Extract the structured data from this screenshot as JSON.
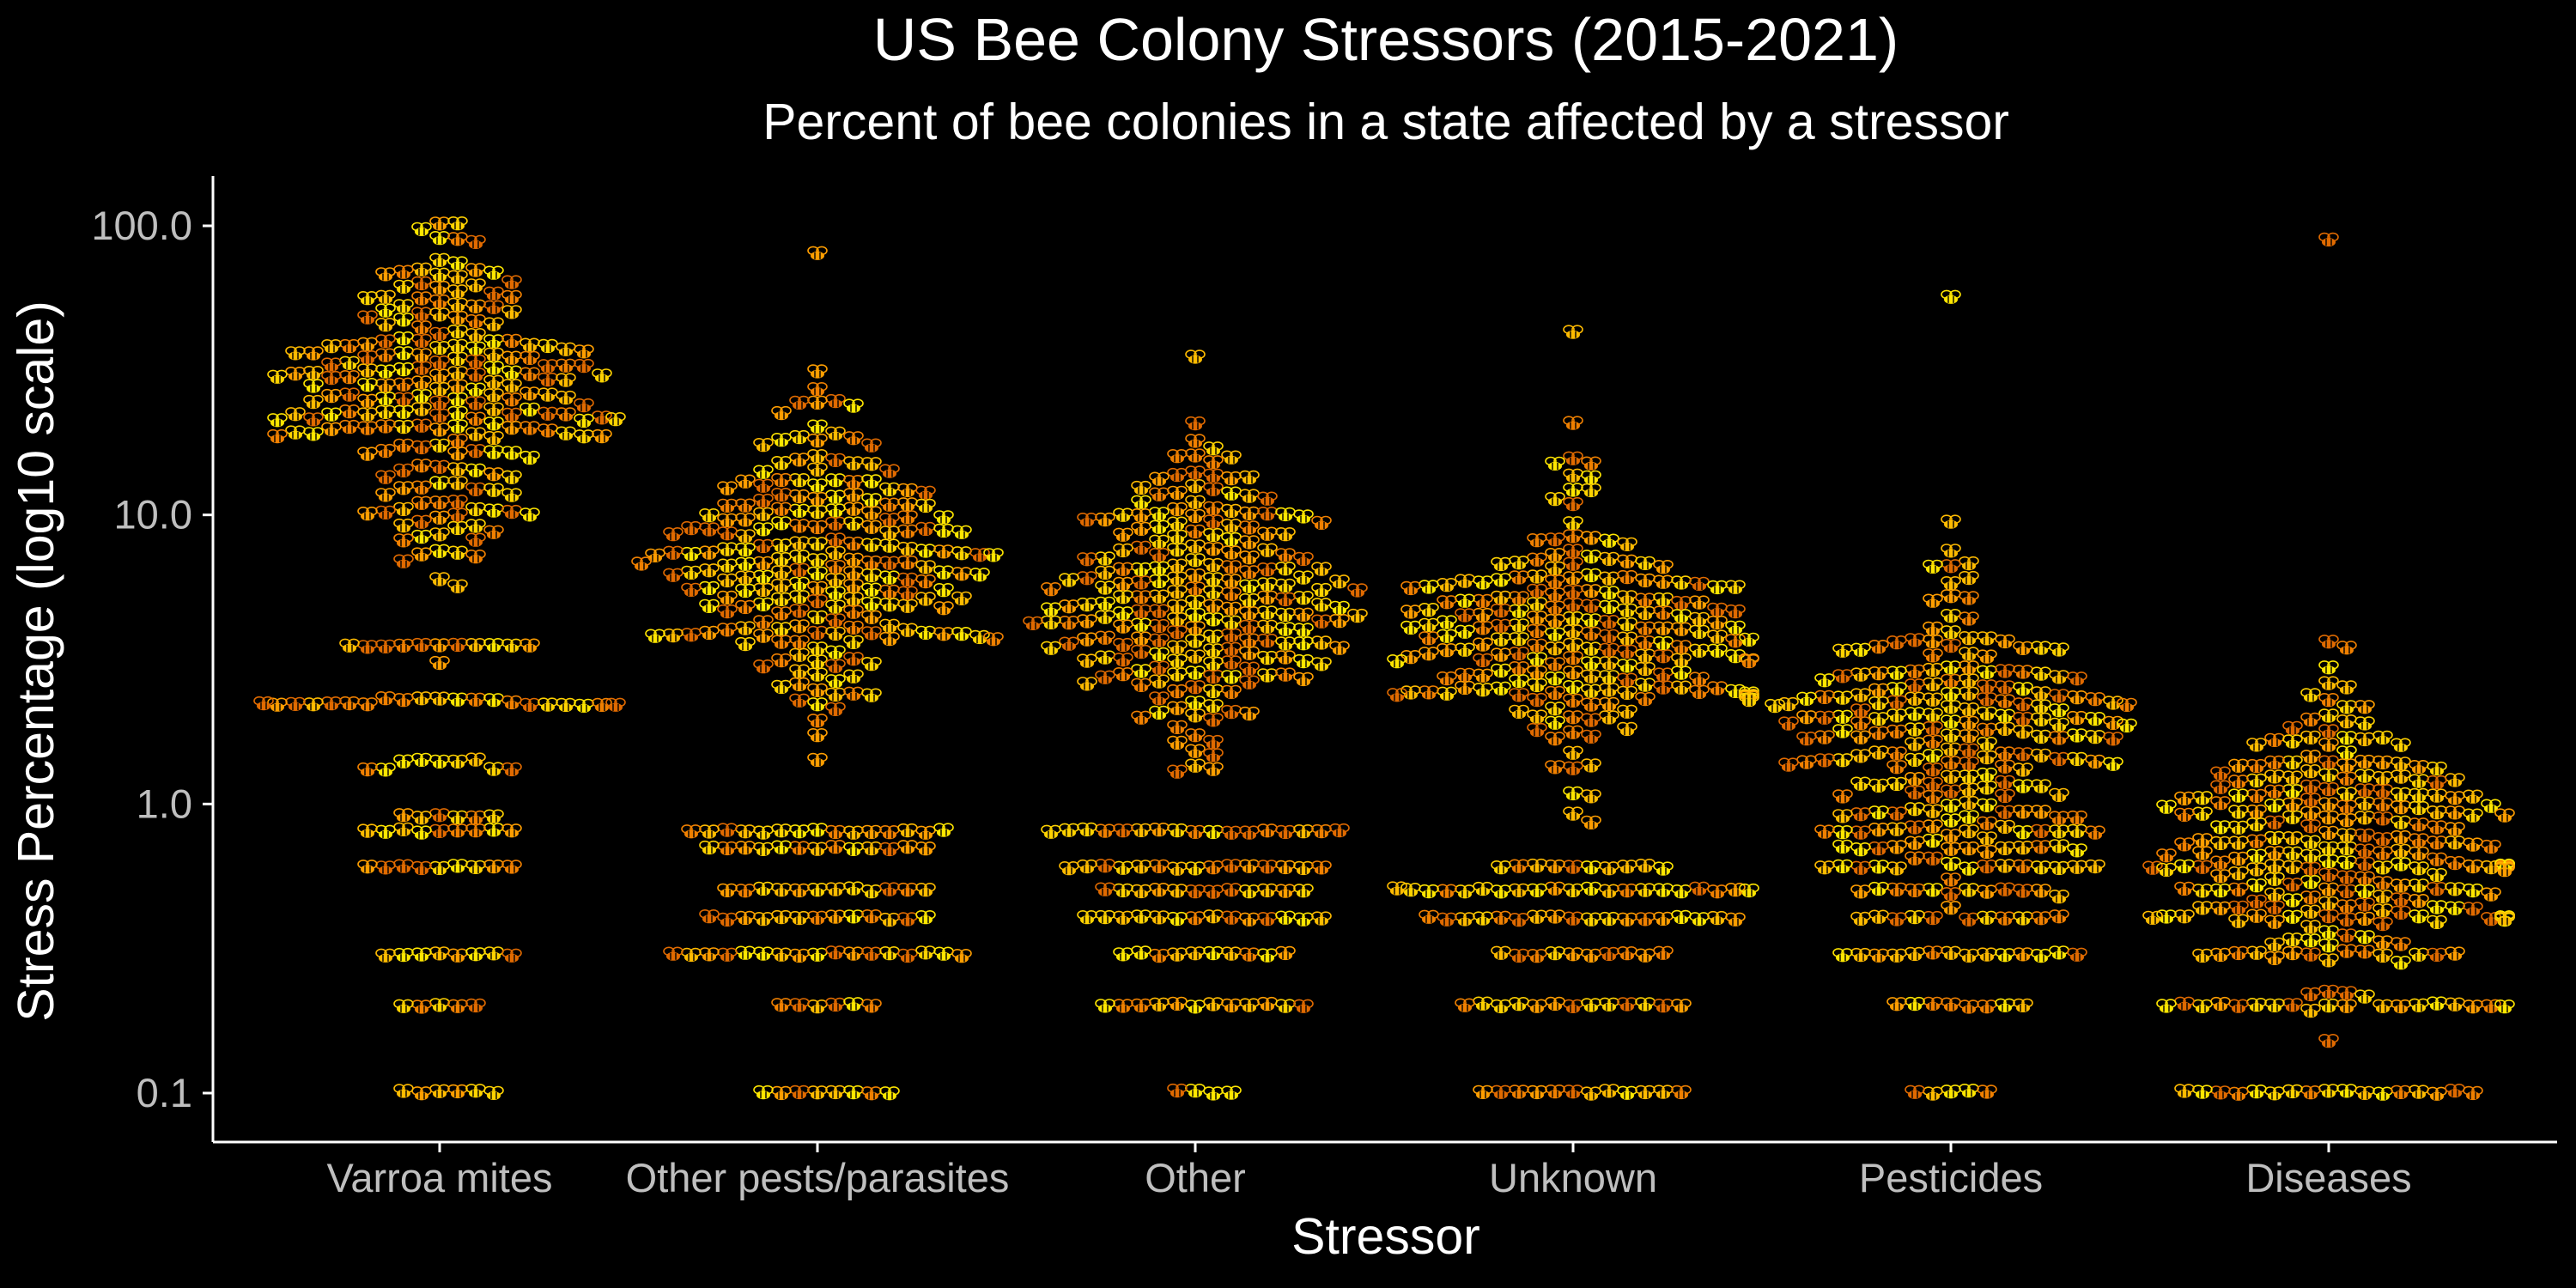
{
  "colors": {
    "background": "#000000",
    "text": "#ffffff",
    "tick_text": "#bfbfbf",
    "axis": "#ffffff",
    "point_palette": [
      "#ffd200",
      "#ffbb00",
      "#ff9e00",
      "#f08000",
      "#e06a00",
      "#ffe600"
    ]
  },
  "marker_icon": "bee-icon",
  "chart_data": {
    "type": "beeswarm",
    "title": "US Bee Colony Stressors (2015-2021)",
    "subtitle": "Percent of bee colonies in a state affected by a stressor",
    "xlabel": "Stressor",
    "ylabel": "Stress Percentage (log10 scale)",
    "y_scale": "log10",
    "ylim": [
      0.1,
      100
    ],
    "y_ticks": [
      0.1,
      1.0,
      10.0,
      100.0
    ],
    "y_tick_labels": [
      "0.1",
      "1.0",
      "10.0",
      "100.0"
    ],
    "grid": false,
    "legend": "none",
    "categories": [
      "Varroa mites",
      "Other pests/parasites",
      "Other",
      "Unknown",
      "Pesticides",
      "Diseases"
    ],
    "series": [
      {
        "category": "Varroa mites",
        "approx_count": 300,
        "approx_range": [
          0.1,
          100
        ],
        "median": 24,
        "dense_low_values": [
          0.1,
          0.2,
          0.3,
          0.6,
          0.8,
          0.9,
          1.3,
          1.4,
          2.2,
          2.3,
          3.5
        ]
      },
      {
        "category": "Other pests/parasites",
        "approx_count": 300,
        "approx_range": [
          0.1,
          80
        ],
        "median": 7,
        "dense_low_values": [
          0.1,
          0.2,
          0.3,
          0.4,
          0.5,
          0.7,
          0.8
        ]
      },
      {
        "category": "Other",
        "approx_count": 300,
        "approx_range": [
          0.1,
          35
        ],
        "median": 5,
        "dense_low_values": [
          0.1,
          0.2,
          0.3,
          0.4,
          0.5,
          0.6,
          0.8
        ]
      },
      {
        "category": "Unknown",
        "approx_count": 300,
        "approx_range": [
          0.1,
          43
        ],
        "median": 4,
        "dense_low_values": [
          0.1,
          0.2,
          0.3,
          0.4,
          0.5,
          0.6
        ]
      },
      {
        "category": "Pesticides",
        "approx_count": 280,
        "approx_range": [
          0.1,
          57
        ],
        "median": 1.8,
        "dense_low_values": [
          0.1,
          0.2,
          0.3,
          0.4,
          0.5,
          0.6,
          0.7,
          0.8
        ]
      },
      {
        "category": "Diseases",
        "approx_count": 300,
        "approx_range": [
          0.1,
          90
        ],
        "median": 0.8,
        "dense_low_values": [
          0.1,
          0.2,
          0.3,
          0.4,
          0.5,
          0.6
        ]
      }
    ]
  }
}
